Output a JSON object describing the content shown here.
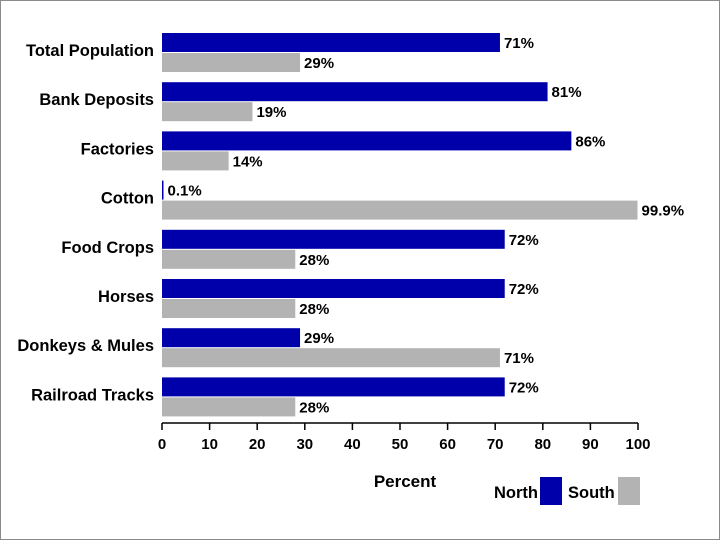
{
  "chart_data": {
    "type": "bar",
    "orientation": "horizontal",
    "title": "",
    "xlabel": "Percent",
    "ylabel": "",
    "xlim": [
      0,
      100
    ],
    "xticks": [
      0,
      10,
      20,
      30,
      40,
      50,
      60,
      70,
      80,
      90,
      100
    ],
    "grid": false,
    "legend_position": "bottom-right",
    "categories": [
      "Total Population",
      "Bank Deposits",
      "Factories",
      "Cotton",
      "Food Crops",
      "Horses",
      "Donkeys & Mules",
      "Railroad Tracks"
    ],
    "series": [
      {
        "name": "North",
        "color": "#0000aa",
        "values": [
          71,
          81,
          86,
          0.1,
          72,
          72,
          29,
          72
        ],
        "labels": [
          "71%",
          "81%",
          "86%",
          "0.1%",
          "72%",
          "72%",
          "29%",
          "72%"
        ]
      },
      {
        "name": "South",
        "color": "#b3b3b3",
        "values": [
          29,
          19,
          14,
          99.9,
          28,
          28,
          71,
          28
        ],
        "labels": [
          "29%",
          "19%",
          "14%",
          "99.9%",
          "28%",
          "28%",
          "71%",
          "28%"
        ]
      }
    ]
  }
}
